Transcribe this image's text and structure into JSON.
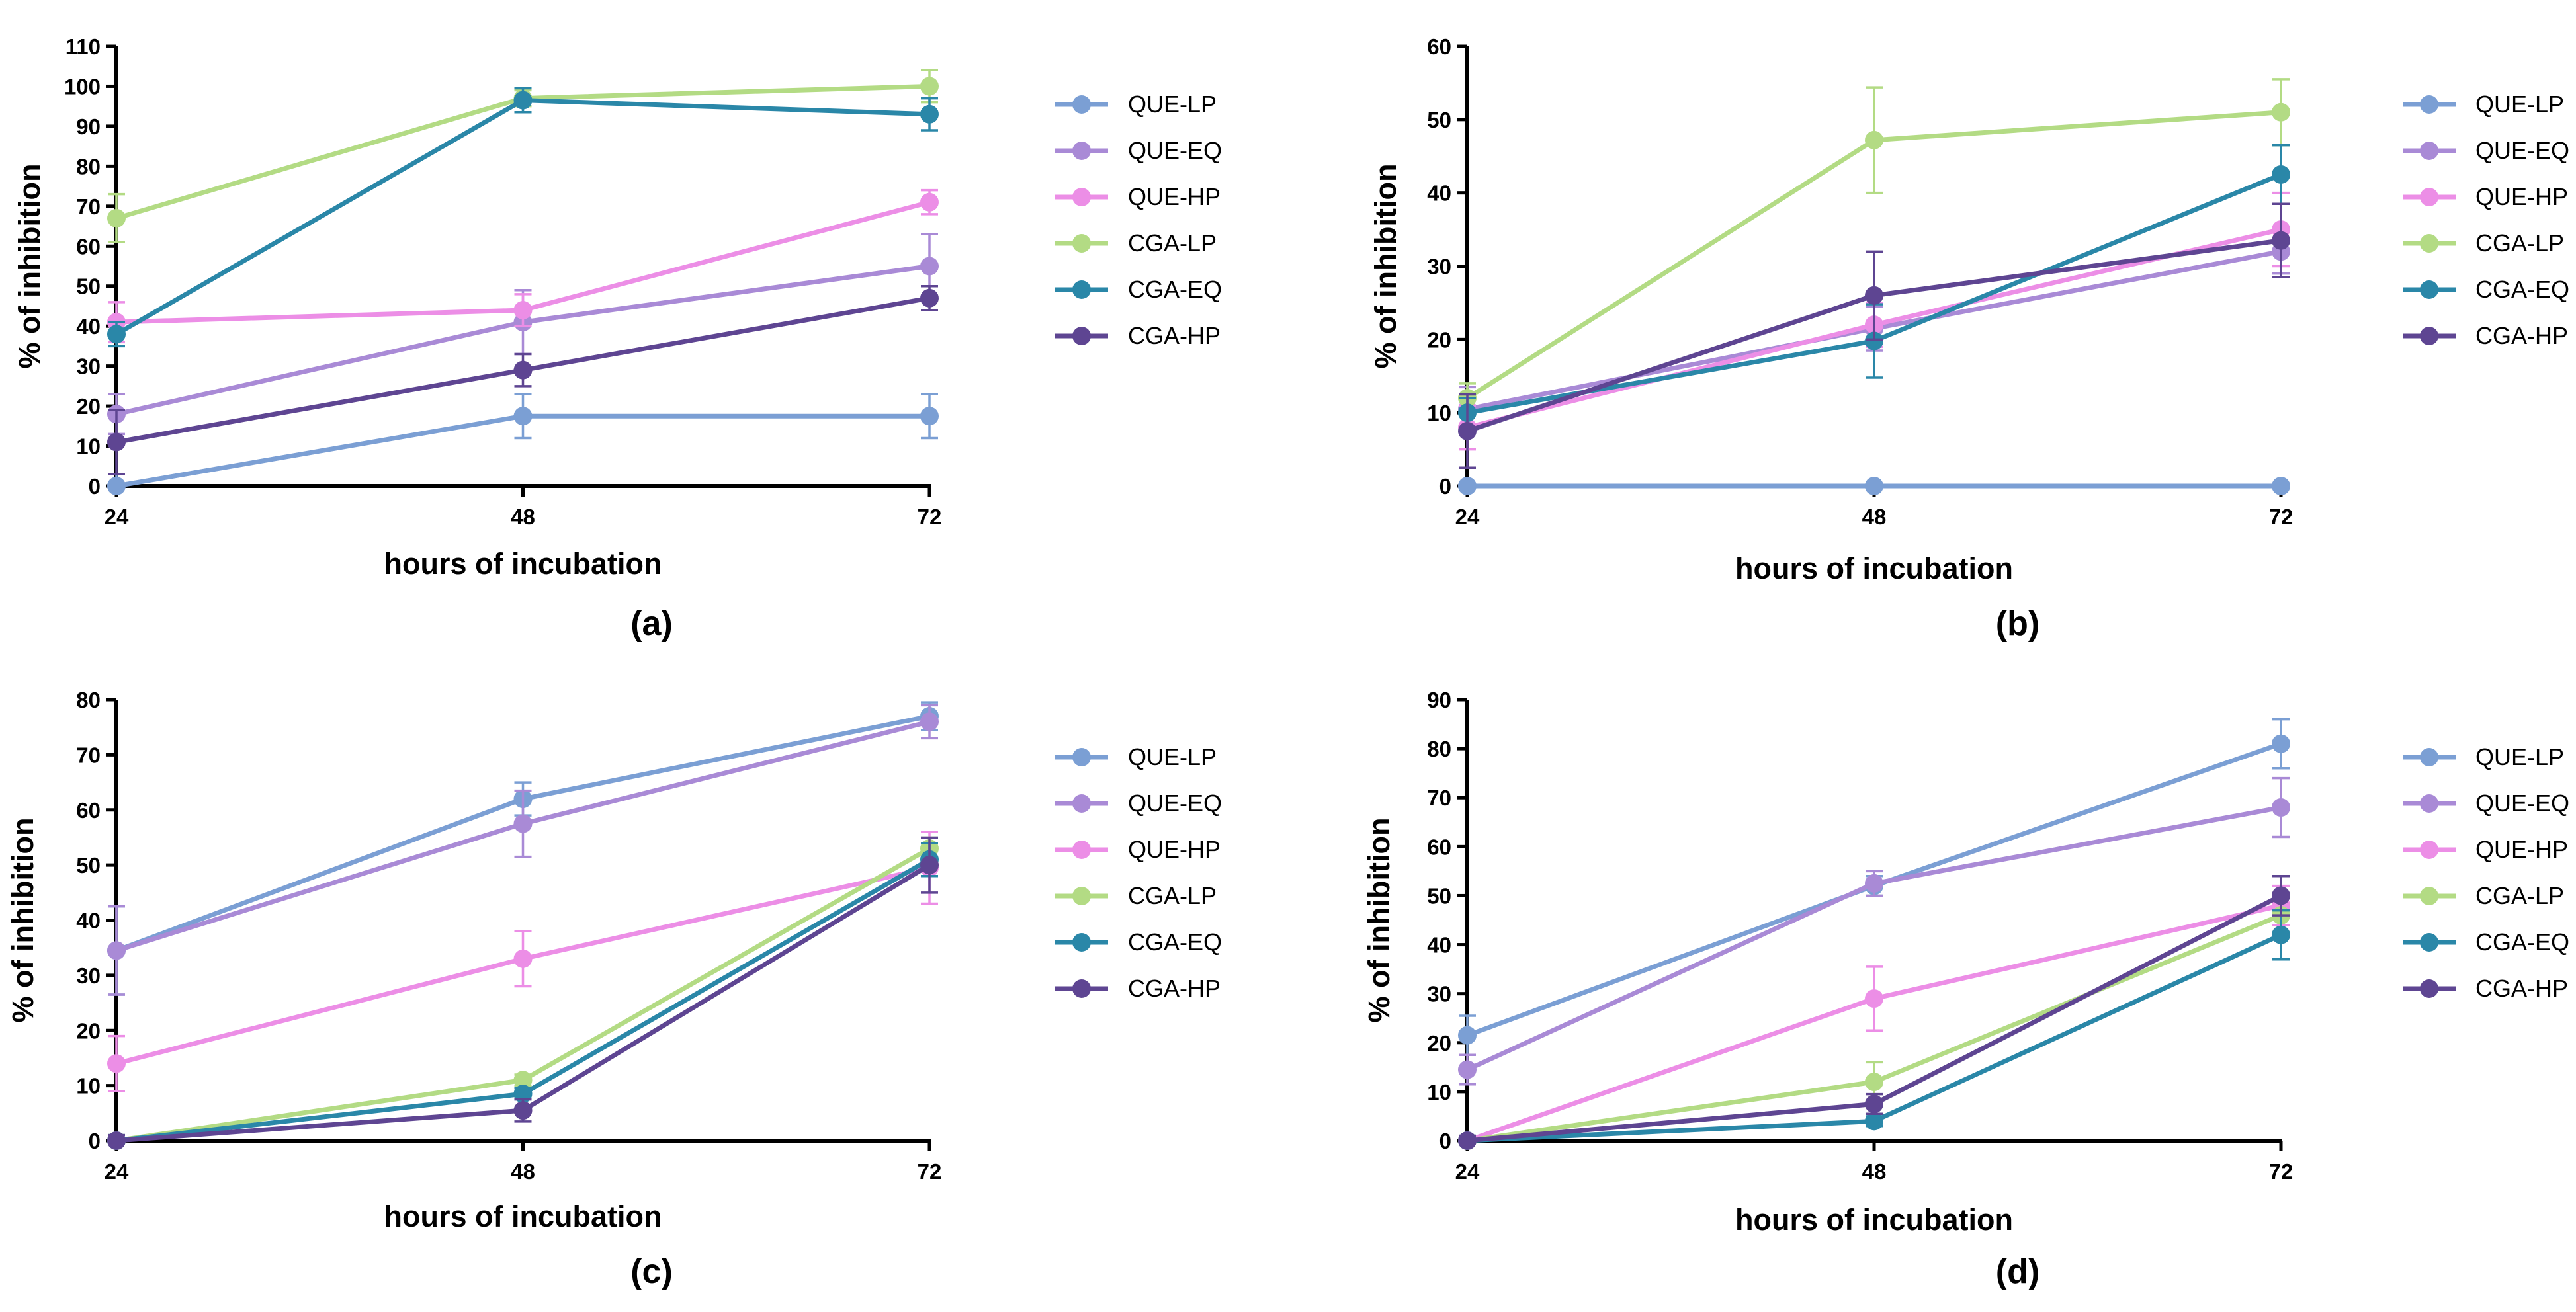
{
  "colors": {
    "QUE-LP": "#7b9fd4",
    "QUE-EQ": "#a98ad6",
    "QUE-HP": "#ec8ee6",
    "CGA-LP": "#b3db84",
    "CGA-EQ": "#2a87a8",
    "CGA-HP": "#5e4592"
  },
  "chart_data": [
    {
      "type": "line",
      "panel": "(a)",
      "xlabel": "hours of incubation",
      "ylabel": "% of inhibition",
      "x": [
        24,
        48,
        72
      ],
      "ylim": [
        0,
        110
      ],
      "yticks": [
        0,
        10,
        20,
        30,
        40,
        50,
        60,
        70,
        80,
        90,
        100,
        110
      ],
      "legend": [
        "QUE-LP",
        "QUE-EQ",
        "QUE-HP",
        "CGA-LP",
        "CGA-EQ",
        "CGA-HP"
      ],
      "series": [
        {
          "name": "QUE-LP",
          "values": [
            0,
            17.5,
            17.5
          ],
          "errors": [
            3,
            5.5,
            5.5
          ]
        },
        {
          "name": "QUE-EQ",
          "values": [
            18,
            41,
            55
          ],
          "errors": [
            5,
            8,
            8
          ]
        },
        {
          "name": "QUE-HP",
          "values": [
            41,
            44,
            71
          ],
          "errors": [
            5,
            4,
            3
          ]
        },
        {
          "name": "CGA-LP",
          "values": [
            67,
            97,
            100
          ],
          "errors": [
            6,
            2,
            4
          ]
        },
        {
          "name": "CGA-EQ",
          "values": [
            38,
            96.5,
            93
          ],
          "errors": [
            3,
            3,
            4
          ]
        },
        {
          "name": "CGA-HP",
          "values": [
            11,
            29,
            47
          ],
          "errors": [
            8,
            4,
            3
          ]
        }
      ]
    },
    {
      "type": "line",
      "panel": "(b)",
      "xlabel": "hours of incubation",
      "ylabel": "% of inhibition",
      "x": [
        24,
        48,
        72
      ],
      "ylim": [
        0,
        60
      ],
      "yticks": [
        0,
        10,
        20,
        30,
        40,
        50,
        60
      ],
      "legend": [
        "QUE-LP",
        "QUE-EQ",
        "QUE-HP",
        "CGA-LP",
        "CGA-EQ",
        "CGA-HP"
      ],
      "series": [
        {
          "name": "QUE-LP",
          "values": [
            0,
            0,
            0
          ],
          "errors": [
            0.3,
            0.3,
            0.3
          ]
        },
        {
          "name": "QUE-EQ",
          "values": [
            10.5,
            21.5,
            32
          ],
          "errors": [
            3,
            3,
            3
          ]
        },
        {
          "name": "QUE-HP",
          "values": [
            8,
            22,
            35
          ],
          "errors": [
            3,
            3,
            5
          ]
        },
        {
          "name": "CGA-LP",
          "values": [
            12,
            47.2,
            51
          ],
          "errors": [
            2,
            7.2,
            4.5
          ]
        },
        {
          "name": "CGA-EQ",
          "values": [
            10,
            19.8,
            42.5
          ],
          "errors": [
            2,
            5,
            4
          ]
        },
        {
          "name": "CGA-HP",
          "values": [
            7.5,
            26,
            33.5
          ],
          "errors": [
            5,
            6,
            5
          ]
        }
      ]
    },
    {
      "type": "line",
      "panel": "(c)",
      "xlabel": "hours of incubation",
      "ylabel": "% of inhibition",
      "x": [
        24,
        48,
        72
      ],
      "ylim": [
        0,
        80
      ],
      "yticks": [
        0,
        10,
        20,
        30,
        40,
        50,
        60,
        70,
        80
      ],
      "legend": [
        "QUE-LP",
        "QUE-EQ",
        "QUE-HP",
        "CGA-LP",
        "CGA-EQ",
        "CGA-HP"
      ],
      "series": [
        {
          "name": "QUE-LP",
          "values": [
            34.5,
            62,
            77
          ],
          "errors": [
            8,
            3,
            2.5
          ]
        },
        {
          "name": "QUE-EQ",
          "values": [
            34.5,
            57.5,
            76
          ],
          "errors": [
            8,
            6,
            3
          ]
        },
        {
          "name": "QUE-HP",
          "values": [
            14,
            33,
            49.5
          ],
          "errors": [
            5,
            5,
            6.5
          ]
        },
        {
          "name": "CGA-LP",
          "values": [
            0,
            11,
            53
          ],
          "errors": [
            1,
            1,
            2
          ]
        },
        {
          "name": "CGA-EQ",
          "values": [
            0,
            8.5,
            51
          ],
          "errors": [
            1,
            1,
            3
          ]
        },
        {
          "name": "CGA-HP",
          "values": [
            0,
            5.5,
            50
          ],
          "errors": [
            1,
            2,
            5
          ]
        }
      ]
    },
    {
      "type": "line",
      "panel": "(d)",
      "xlabel": "hours of incubation",
      "ylabel": "% of inhibition",
      "x": [
        24,
        48,
        72
      ],
      "ylim": [
        0,
        90
      ],
      "yticks": [
        0,
        10,
        20,
        30,
        40,
        50,
        60,
        70,
        80,
        90
      ],
      "legend": [
        "QUE-LP",
        "QUE-EQ",
        "QUE-HP",
        "CGA-LP",
        "CGA-EQ",
        "CGA-HP"
      ],
      "series": [
        {
          "name": "QUE-LP",
          "values": [
            21.5,
            52,
            81
          ],
          "errors": [
            4,
            2,
            5
          ]
        },
        {
          "name": "QUE-EQ",
          "values": [
            14.5,
            52.5,
            68
          ],
          "errors": [
            3,
            2.5,
            6
          ]
        },
        {
          "name": "QUE-HP",
          "values": [
            0,
            29,
            48
          ],
          "errors": [
            1,
            6.5,
            4
          ]
        },
        {
          "name": "CGA-LP",
          "values": [
            0,
            12,
            46
          ],
          "errors": [
            1,
            4,
            4
          ]
        },
        {
          "name": "CGA-EQ",
          "values": [
            0,
            4,
            42
          ],
          "errors": [
            1,
            1,
            5
          ]
        },
        {
          "name": "CGA-HP",
          "values": [
            0,
            7.5,
            50
          ],
          "errors": [
            1,
            2,
            4
          ]
        }
      ]
    }
  ]
}
